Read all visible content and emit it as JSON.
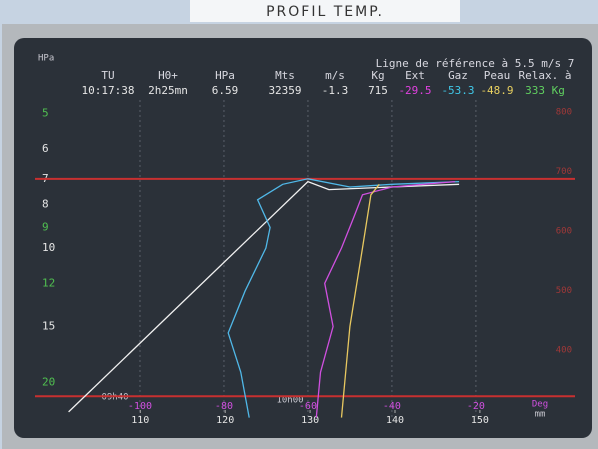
{
  "label_tag": "PROFIL TEMP.",
  "corner_label": "HPa",
  "reference_text": "Ligne de référence à 5.5 m/s 7",
  "readout": {
    "headers": [
      "TU",
      "H0+",
      "HPa",
      "Mts",
      "m/s",
      "Kg",
      "Ext",
      "Gaz",
      "Peau",
      "Relax. à"
    ],
    "values": [
      "10:17:38",
      "2h25mn",
      "6.59",
      "32359",
      "-1.3",
      "715",
      "-29.5",
      "-53.3",
      "-48.9",
      "333 Kg"
    ],
    "value_colors": [
      "#e6e6e6",
      "#e6e6e6",
      "#e6e6e6",
      "#e6e6e6",
      "#e6e6e6",
      "#e6e6e6",
      "#e040e0",
      "#40c8e8",
      "#e8d060",
      "#60d060"
    ]
  },
  "plot": {
    "xlim": [
      -125,
      3.6
    ],
    "ylim": [
      3.6,
      24.3
    ],
    "ylog": true,
    "xticks": [
      -100,
      -80,
      -60,
      -40,
      -20
    ],
    "x_unit": "Deg",
    "x2lim": [
      97.6,
      161.2
    ],
    "x2ticks": [
      110,
      120,
      130,
      140,
      150
    ],
    "x2_unit": "mm",
    "yticks": [
      5,
      6,
      7,
      8,
      9,
      10,
      12,
      15,
      20
    ],
    "ytick_colors": [
      "#50c050",
      "#e6e6e6",
      "#e6e6e6",
      "#e6e6e6",
      "#50c050",
      "#e6e6e6",
      "#50c050",
      "#e6e6e6",
      "#50c050"
    ],
    "right_lim": [
      904,
      282
    ],
    "right_ticks": [
      800,
      700,
      600,
      500,
      400
    ],
    "time_labels": [
      "09h40",
      "10h00"
    ],
    "reference_lines": [
      7.0,
      21.5
    ],
    "traces": [
      {
        "color": "#f0f0f0",
        "points": [
          [
            -117,
            23.3
          ],
          [
            -60,
            7.1
          ],
          [
            -55,
            7.4
          ],
          [
            -40,
            7.3
          ],
          [
            -24,
            7.2
          ]
        ]
      },
      {
        "color": "#50b8e8",
        "points": [
          [
            -74,
            24
          ],
          [
            -76,
            19
          ],
          [
            -79,
            15.5
          ],
          [
            -75,
            12.5
          ],
          [
            -70,
            10
          ],
          [
            -69,
            9
          ],
          [
            -72,
            7.8
          ],
          [
            -66,
            7.2
          ],
          [
            -60,
            7
          ],
          [
            -50,
            7.3
          ],
          [
            -40,
            7.2
          ],
          [
            -24,
            7.1
          ]
        ]
      },
      {
        "color": "#d050e0",
        "points": [
          [
            -58,
            24
          ],
          [
            -57,
            19
          ],
          [
            -54,
            15
          ],
          [
            -56,
            12
          ],
          [
            -52,
            10
          ],
          [
            -49,
            8.5
          ],
          [
            -47,
            7.6
          ],
          [
            -40,
            7.3
          ],
          [
            -25,
            7.1
          ]
        ]
      },
      {
        "color": "#e8c860",
        "points": [
          [
            -52,
            24
          ],
          [
            -50,
            15
          ],
          [
            -47,
            10
          ],
          [
            -45,
            7.6
          ],
          [
            -43,
            7.2
          ]
        ]
      }
    ]
  }
}
